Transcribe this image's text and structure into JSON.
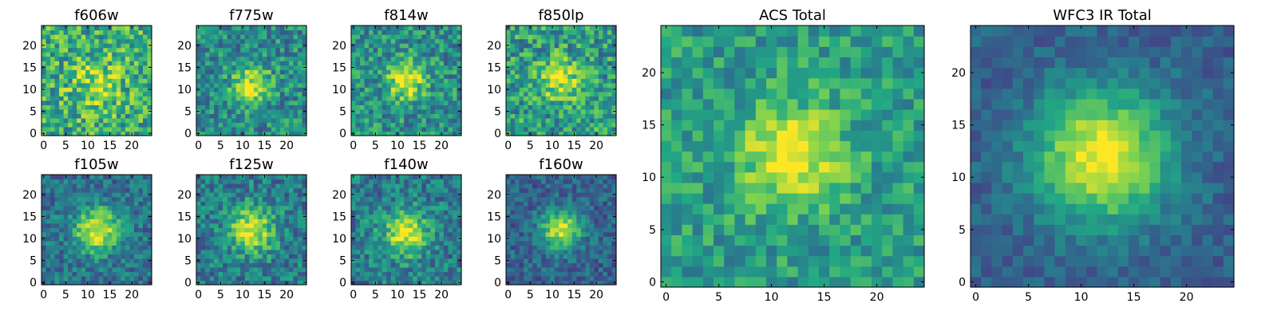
{
  "figure": {
    "colormap": "viridis",
    "colormap_stops": [
      "#440154",
      "#414487",
      "#2a788e",
      "#22a884",
      "#7ad151",
      "#fde725"
    ],
    "background": "#ffffff"
  },
  "chart_data": [
    {
      "type": "heatmap",
      "title": "f606w",
      "size": "small",
      "peak": [
        12,
        11
      ],
      "width": 4.0,
      "amplitude": 0.25,
      "noise": 0.55,
      "base": 0.62,
      "seed": 11,
      "xlim": [
        0,
        24
      ],
      "ylim": [
        0,
        24
      ],
      "xticks": [
        0,
        5,
        10,
        15,
        20
      ],
      "yticks": [
        0,
        5,
        10,
        15,
        20
      ]
    },
    {
      "type": "heatmap",
      "title": "f775w",
      "size": "small",
      "peak": [
        12,
        11
      ],
      "width": 3.2,
      "amplitude": 0.45,
      "noise": 0.45,
      "base": 0.48,
      "seed": 23,
      "xlim": [
        0,
        24
      ],
      "ylim": [
        0,
        24
      ],
      "xticks": [
        0,
        5,
        10,
        15,
        20
      ],
      "yticks": [
        0,
        5,
        10,
        15,
        20
      ]
    },
    {
      "type": "heatmap",
      "title": "f814w",
      "size": "small",
      "peak": [
        12,
        12
      ],
      "width": 3.0,
      "amplitude": 0.5,
      "noise": 0.45,
      "base": 0.5,
      "seed": 37,
      "xlim": [
        0,
        24
      ],
      "ylim": [
        0,
        24
      ],
      "xticks": [
        0,
        5,
        10,
        15,
        20
      ],
      "yticks": [
        0,
        5,
        10,
        15,
        20
      ]
    },
    {
      "type": "heatmap",
      "title": "f850lp",
      "size": "small",
      "peak": [
        12,
        12
      ],
      "width": 3.2,
      "amplitude": 0.4,
      "noise": 0.5,
      "base": 0.55,
      "seed": 41,
      "xlim": [
        0,
        24
      ],
      "ylim": [
        0,
        24
      ],
      "xticks": [
        0,
        5,
        10,
        15,
        20
      ],
      "yticks": [
        0,
        5,
        10,
        15,
        20
      ]
    },
    {
      "type": "heatmap",
      "title": "f105w",
      "size": "small",
      "peak": [
        12,
        12
      ],
      "width": 3.5,
      "amplitude": 0.6,
      "noise": 0.35,
      "base": 0.38,
      "seed": 53,
      "xlim": [
        0,
        24
      ],
      "ylim": [
        0,
        24
      ],
      "xticks": [
        0,
        5,
        10,
        15,
        20
      ],
      "yticks": [
        0,
        5,
        10,
        15,
        20
      ]
    },
    {
      "type": "heatmap",
      "title": "f125w",
      "size": "small",
      "peak": [
        12,
        12
      ],
      "width": 3.5,
      "amplitude": 0.55,
      "noise": 0.4,
      "base": 0.42,
      "seed": 67,
      "xlim": [
        0,
        24
      ],
      "ylim": [
        0,
        24
      ],
      "xticks": [
        0,
        5,
        10,
        15,
        20
      ],
      "yticks": [
        0,
        5,
        10,
        15,
        20
      ]
    },
    {
      "type": "heatmap",
      "title": "f140w",
      "size": "small",
      "peak": [
        12,
        11
      ],
      "width": 3.5,
      "amplitude": 0.55,
      "noise": 0.4,
      "base": 0.42,
      "seed": 71,
      "xlim": [
        0,
        24
      ],
      "ylim": [
        0,
        24
      ],
      "xticks": [
        0,
        5,
        10,
        15,
        20
      ],
      "yticks": [
        0,
        5,
        10,
        15,
        20
      ]
    },
    {
      "type": "heatmap",
      "title": "f160w",
      "size": "small",
      "peak": [
        12,
        12
      ],
      "width": 3.0,
      "amplitude": 0.65,
      "noise": 0.3,
      "base": 0.32,
      "seed": 83,
      "xlim": [
        0,
        24
      ],
      "ylim": [
        0,
        24
      ],
      "xticks": [
        0,
        5,
        10,
        15,
        20
      ],
      "yticks": [
        0,
        5,
        10,
        15,
        20
      ]
    },
    {
      "type": "heatmap",
      "title": "ACS Total",
      "size": "large",
      "peak": [
        12,
        12
      ],
      "width": 3.2,
      "amplitude": 0.5,
      "noise": 0.35,
      "base": 0.55,
      "seed": 97,
      "xlim": [
        0,
        24
      ],
      "ylim": [
        0,
        24
      ],
      "xticks": [
        0,
        5,
        10,
        15,
        20
      ],
      "yticks": [
        0,
        5,
        10,
        15,
        20
      ]
    },
    {
      "type": "heatmap",
      "title": "WFC3 IR Total",
      "size": "large",
      "peak": [
        12,
        12
      ],
      "width": 4.5,
      "amplitude": 0.7,
      "noise": 0.2,
      "base": 0.3,
      "seed": 101,
      "xlim": [
        0,
        24
      ],
      "ylim": [
        0,
        24
      ],
      "xticks": [
        0,
        5,
        10,
        15,
        20
      ],
      "yticks": [
        0,
        5,
        10,
        15,
        20
      ]
    }
  ]
}
